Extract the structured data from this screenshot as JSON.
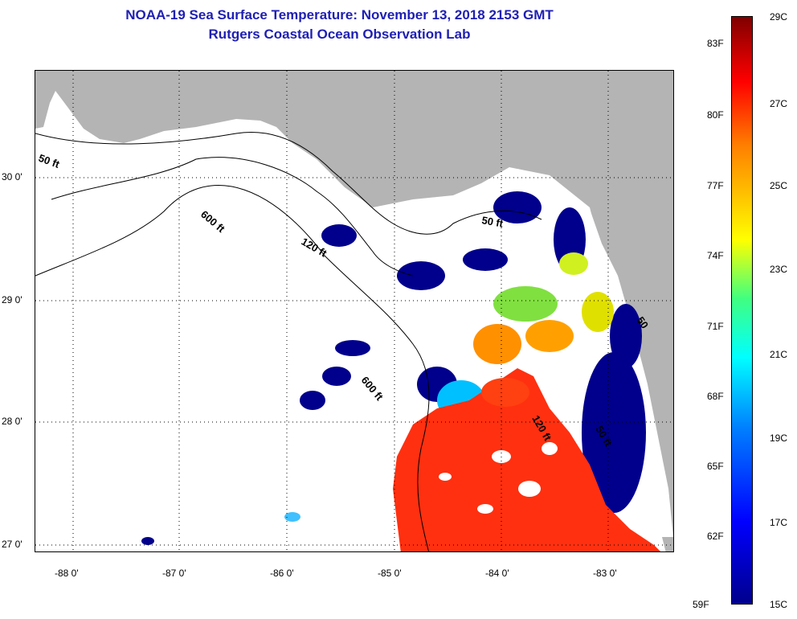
{
  "title": {
    "line1": "NOAA-19 Sea Surface Temperature:  November 13, 2018 2153 GMT",
    "line2": "Rutgers Coastal Ocean Observation Lab"
  },
  "colors": {
    "title": "#1f1fb4",
    "land": "#b4b4b4",
    "cloud": "#ffffff",
    "cold": "#00008c",
    "warm": "#ff3010"
  },
  "map": {
    "lat_labels": [
      "30 0'",
      "29 0'",
      "28 0'",
      "27 0'"
    ],
    "lon_labels": [
      "-88 0'",
      "-87 0'",
      "-86 0'",
      "-85 0'",
      "-84 0'",
      "-83 0'"
    ],
    "contours": [
      "50 ft",
      "600 ft",
      "120 ft",
      "50 ft",
      "600 ft",
      "120 ft",
      "50 ft",
      "50"
    ]
  },
  "colorbar": {
    "fahrenheit": [
      "83F",
      "80F",
      "77F",
      "74F",
      "71F",
      "68F",
      "65F",
      "62F",
      "59F"
    ],
    "celsius": [
      "29C",
      "27C",
      "25C",
      "23C",
      "21C",
      "19C",
      "17C",
      "15C"
    ]
  }
}
